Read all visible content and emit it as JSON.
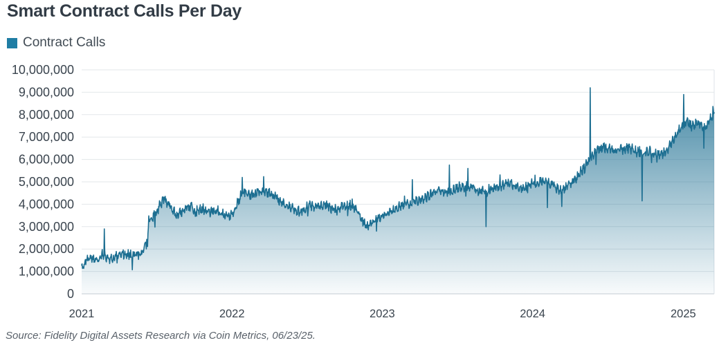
{
  "header": {
    "title": "Smart Contract Calls Per Day"
  },
  "legend": {
    "label": "Contract Calls",
    "color": "#1f7da4"
  },
  "footer": {
    "source": "Source: Fidelity Digital Assets Research via Coin Metrics, 06/23/25."
  },
  "chart_data": {
    "type": "area",
    "title": "Smart Contract Calls Per Day",
    "series_name": "Contract Calls",
    "xlabel": "",
    "ylabel": "",
    "ylim": [
      0,
      10000000
    ],
    "grid": "horizontal",
    "legend_position": "top-left",
    "y_ticks": [
      "0",
      "1,000,000",
      "2,000,000",
      "3,000,000",
      "4,000,000",
      "5,000,000",
      "6,000,000",
      "7,000,000",
      "8,000,000",
      "9,000,000",
      "10,000,000"
    ],
    "x_ticks": [
      {
        "label": "2021",
        "date": "2021-01-01"
      },
      {
        "label": "2022",
        "date": "2022-01-01"
      },
      {
        "label": "2023",
        "date": "2023-01-01"
      },
      {
        "label": "2024",
        "date": "2024-01-01"
      },
      {
        "label": "2025",
        "date": "2025-01-01"
      }
    ],
    "x_range": [
      "2021-01-01",
      "2025-03-17"
    ],
    "colors": {
      "line": "#1c6e91",
      "fill_top": "#1c6e91",
      "fill_top_opacity": 0.9,
      "fill_bottom_opacity": 0.03,
      "grid": "#e3e7ea",
      "zero_axis": "#c6ccd3",
      "right_border": "#dde3e8",
      "tick_label": "#3a444e"
    },
    "keypoints": [
      [
        "2021-01-01",
        1200000
      ],
      [
        "2021-01-18",
        1600000
      ],
      [
        "2021-02-08",
        1450000
      ],
      [
        "2021-02-22",
        1800000
      ],
      [
        "2021-03-08",
        1520000
      ],
      [
        "2021-03-22",
        1650000
      ],
      [
        "2021-04-10",
        1720000
      ],
      [
        "2021-05-01",
        1760000
      ],
      [
        "2021-05-22",
        1720000
      ],
      [
        "2021-06-02",
        2100000
      ],
      [
        "2021-06-07",
        2450000
      ],
      [
        "2021-06-10",
        2200000
      ],
      [
        "2021-06-13",
        3300000
      ],
      [
        "2021-06-24",
        3450000
      ],
      [
        "2021-07-05",
        3800000
      ],
      [
        "2021-07-20",
        4250000
      ],
      [
        "2021-08-02",
        4000000
      ],
      [
        "2021-08-20",
        3450000
      ],
      [
        "2021-09-05",
        3700000
      ],
      [
        "2021-09-20",
        3950000
      ],
      [
        "2021-10-05",
        3600000
      ],
      [
        "2021-10-20",
        3800000
      ],
      [
        "2021-11-05",
        3620000
      ],
      [
        "2021-11-20",
        3720000
      ],
      [
        "2021-12-05",
        3580000
      ],
      [
        "2021-12-20",
        3500000
      ],
      [
        "2022-01-05",
        3650000
      ],
      [
        "2022-01-20",
        4300000
      ],
      [
        "2022-02-01",
        4600000
      ],
      [
        "2022-02-15",
        4400000
      ],
      [
        "2022-03-01",
        4500000
      ],
      [
        "2022-03-15",
        4650000
      ],
      [
        "2022-04-01",
        4480000
      ],
      [
        "2022-04-15",
        4350000
      ],
      [
        "2022-05-01",
        4100000
      ],
      [
        "2022-05-15",
        3900000
      ],
      [
        "2022-06-01",
        3750000
      ],
      [
        "2022-06-15",
        3650000
      ],
      [
        "2022-07-01",
        3850000
      ],
      [
        "2022-07-15",
        3950000
      ],
      [
        "2022-08-01",
        3850000
      ],
      [
        "2022-08-15",
        4000000
      ],
      [
        "2022-09-01",
        3800000
      ],
      [
        "2022-09-15",
        3750000
      ],
      [
        "2022-10-01",
        3900000
      ],
      [
        "2022-10-15",
        3950000
      ],
      [
        "2022-11-01",
        3750000
      ],
      [
        "2022-11-14",
        3300000
      ],
      [
        "2022-11-24",
        2950000
      ],
      [
        "2022-12-08",
        3200000
      ],
      [
        "2022-12-22",
        3400000
      ],
      [
        "2023-01-08",
        3500000
      ],
      [
        "2023-01-22",
        3720000
      ],
      [
        "2023-02-08",
        3850000
      ],
      [
        "2023-02-22",
        3950000
      ],
      [
        "2023-03-08",
        4000000
      ],
      [
        "2023-03-22",
        4120000
      ],
      [
        "2023-04-08",
        4220000
      ],
      [
        "2023-04-22",
        4350000
      ],
      [
        "2023-05-08",
        4550000
      ],
      [
        "2023-05-22",
        4650000
      ],
      [
        "2023-06-08",
        4500000
      ],
      [
        "2023-06-22",
        4650000
      ],
      [
        "2023-07-08",
        4800000
      ],
      [
        "2023-07-22",
        4750000
      ],
      [
        "2023-08-08",
        4800000
      ],
      [
        "2023-08-22",
        4600000
      ],
      [
        "2023-09-08",
        4550000
      ],
      [
        "2023-09-22",
        4650000
      ],
      [
        "2023-10-08",
        4750000
      ],
      [
        "2023-10-22",
        4850000
      ],
      [
        "2023-11-08",
        4950000
      ],
      [
        "2023-11-22",
        4800000
      ],
      [
        "2023-12-08",
        4700000
      ],
      [
        "2023-12-22",
        4850000
      ],
      [
        "2024-01-08",
        4920000
      ],
      [
        "2024-01-22",
        5050000
      ],
      [
        "2024-02-08",
        5000000
      ],
      [
        "2024-02-22",
        4800000
      ],
      [
        "2024-03-08",
        4600000
      ],
      [
        "2024-03-22",
        4720000
      ],
      [
        "2024-04-08",
        5000000
      ],
      [
        "2024-04-22",
        5300000
      ],
      [
        "2024-05-08",
        5700000
      ],
      [
        "2024-05-22",
        6100000
      ],
      [
        "2024-06-08",
        6400000
      ],
      [
        "2024-06-22",
        6550000
      ],
      [
        "2024-07-08",
        6450000
      ],
      [
        "2024-07-22",
        6350000
      ],
      [
        "2024-08-08",
        6450000
      ],
      [
        "2024-08-22",
        6550000
      ],
      [
        "2024-09-08",
        6350000
      ],
      [
        "2024-09-22",
        6300000
      ],
      [
        "2024-10-08",
        6380000
      ],
      [
        "2024-10-22",
        6250000
      ],
      [
        "2024-11-08",
        6200000
      ],
      [
        "2024-11-22",
        6350000
      ],
      [
        "2024-12-08",
        6900000
      ],
      [
        "2024-12-22",
        7400000
      ],
      [
        "2025-01-08",
        7700000
      ],
      [
        "2025-01-22",
        7500000
      ],
      [
        "2025-02-08",
        7600000
      ],
      [
        "2025-02-22",
        7350000
      ],
      [
        "2025-03-05",
        7700000
      ],
      [
        "2025-03-17",
        8050000
      ]
    ],
    "spikes": [
      [
        "2021-02-25",
        2900000
      ],
      [
        "2022-01-26",
        5200000
      ],
      [
        "2022-12-18",
        2800000
      ],
      [
        "2023-03-15",
        5100000
      ],
      [
        "2023-06-13",
        5750000
      ],
      [
        "2023-07-28",
        5600000
      ],
      [
        "2023-09-10",
        3000000
      ],
      [
        "2024-02-06",
        3850000
      ],
      [
        "2024-03-12",
        3900000
      ],
      [
        "2024-05-20",
        9200000
      ],
      [
        "2024-09-23",
        4150000
      ],
      [
        "2025-01-02",
        8900000
      ],
      [
        "2025-02-20",
        6500000
      ]
    ],
    "noise": {
      "daily": 170000,
      "weekly": 90000,
      "outlier_chance": 0.05,
      "outlier_scale": 450000,
      "seed": 11
    }
  }
}
